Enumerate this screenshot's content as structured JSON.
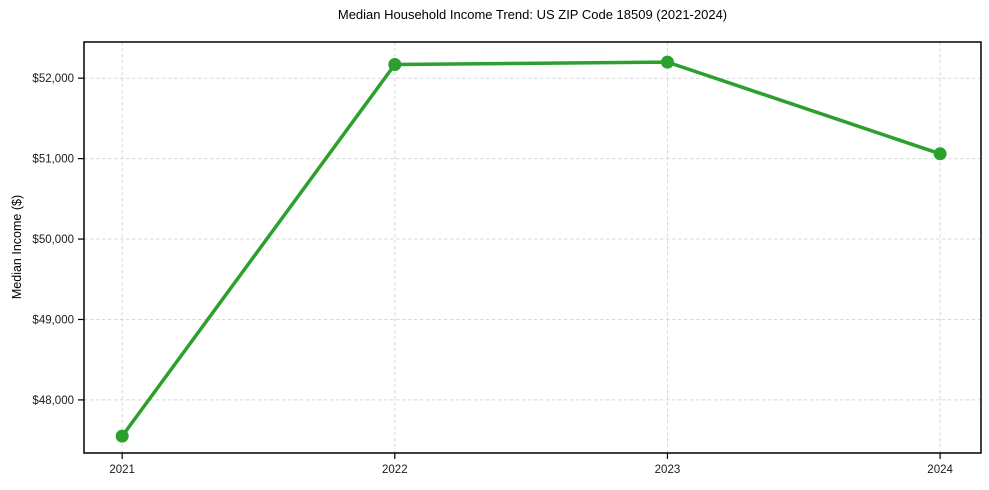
{
  "chart_data": {
    "type": "line",
    "title": "Median Household Income Trend: US ZIP Code 18509 (2021-2024)",
    "xlabel": "",
    "ylabel": "Median Income ($)",
    "x": [
      2021,
      2022,
      2023,
      2024
    ],
    "series": [
      {
        "name": "Median Household Income",
        "values": [
          47550,
          52170,
          52200,
          51060
        ]
      }
    ],
    "xlim": [
      2020.86,
      2024.15
    ],
    "ylim": [
      47340,
      52450
    ],
    "xticks": [
      2021,
      2022,
      2023,
      2024
    ],
    "xtick_labels": [
      "2021",
      "2022",
      "2023",
      "2024"
    ],
    "yticks": [
      48000,
      49000,
      50000,
      51000,
      52000
    ],
    "ytick_labels": [
      "$48,000",
      "$49,000",
      "$50,000",
      "$51,000",
      "$52,000"
    ],
    "grid": true,
    "grid_style": "dashed",
    "legend_position": "none",
    "marker": "circle",
    "marker_radius": 6.5,
    "line_width": 3.5,
    "colors": {
      "line": "#2ca02c",
      "marker": "#2ca02c",
      "grid": "#d8d8d8",
      "spine": "#000000",
      "background": "#ffffff",
      "tick_text": "#1a1a1a"
    }
  }
}
